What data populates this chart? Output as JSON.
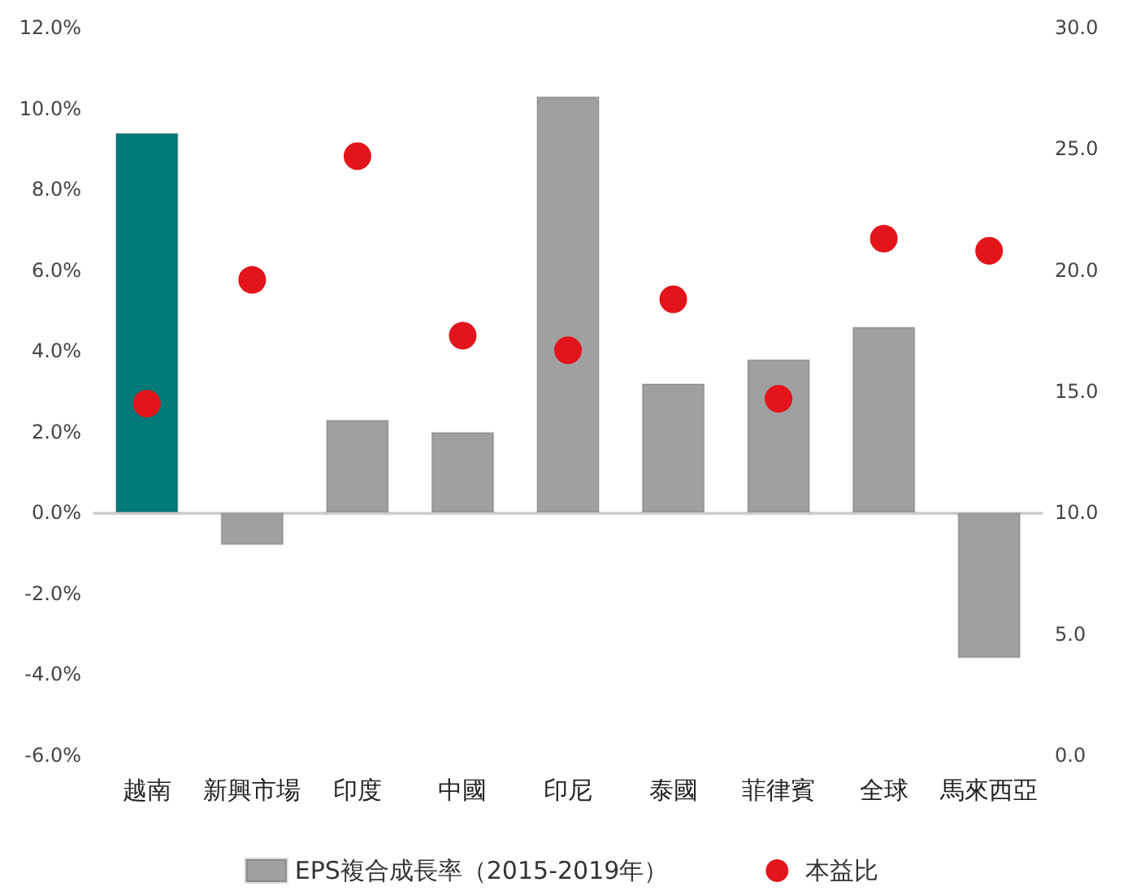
{
  "chart_data": {
    "type": "bar",
    "categories": [
      "越南",
      "新興市場",
      "印度",
      "中國",
      "印尼",
      "泰國",
      "菲律賓",
      "全球",
      "馬來西亞"
    ],
    "series": [
      {
        "name": "EPS複合成長率（2015-2019年）",
        "type": "bar",
        "color": "#a0a0a0",
        "colors": [
          "#007b7a",
          "#a0a0a0",
          "#a0a0a0",
          "#a0a0a0",
          "#a0a0a0",
          "#a0a0a0",
          "#a0a0a0",
          "#a0a0a0",
          "#a0a0a0"
        ],
        "values": [
          9.4,
          -0.8,
          2.3,
          2.0,
          10.3,
          3.2,
          3.8,
          4.6,
          -3.6
        ]
      },
      {
        "name": "本益比",
        "type": "scatter",
        "axis": "y2",
        "color": "#e3141b",
        "values": [
          14.5,
          19.6,
          24.7,
          17.3,
          16.7,
          18.8,
          14.7,
          21.3,
          20.8
        ]
      }
    ],
    "ylim": [
      -6,
      12
    ],
    "yticks": [
      {
        "value": -6,
        "label": "-6.0%"
      },
      {
        "value": -4,
        "label": "-4.0%"
      },
      {
        "value": -2,
        "label": "-2.0%"
      },
      {
        "value": 0,
        "label": "0.0%"
      },
      {
        "value": 2,
        "label": "2.0%"
      },
      {
        "value": 4,
        "label": "4.0%"
      },
      {
        "value": 6,
        "label": "6.0%"
      },
      {
        "value": 8,
        "label": "8.0%"
      },
      {
        "value": 10,
        "label": "10.0%"
      },
      {
        "value": 12,
        "label": "12.0%"
      }
    ],
    "y2lim": [
      0,
      30
    ],
    "y2ticks": [
      {
        "value": 0,
        "label": "0.0"
      },
      {
        "value": 5,
        "label": "5.0"
      },
      {
        "value": 10,
        "label": "10.0"
      },
      {
        "value": 15,
        "label": "15.0"
      },
      {
        "value": 20,
        "label": "20.0"
      },
      {
        "value": 25,
        "label": "25.0"
      },
      {
        "value": 30,
        "label": "30.0"
      }
    ],
    "legend": "bottom",
    "marker": "circle"
  }
}
